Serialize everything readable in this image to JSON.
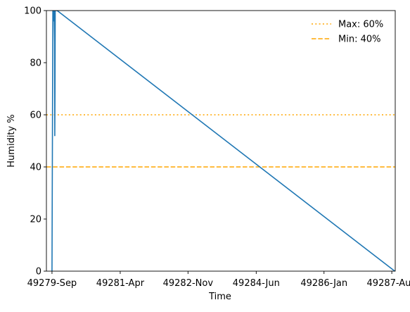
{
  "chart_data": {
    "type": "line",
    "title": "",
    "xlabel": "Time",
    "ylabel": "Humidity %",
    "ylim": [
      0,
      100
    ],
    "yticks": [
      0,
      20,
      40,
      60,
      80,
      100
    ],
    "xlim": [
      -0.13,
      8.0
    ],
    "xticks": [
      {
        "x": 0.0,
        "label": "49279-Sep"
      },
      {
        "x": 1.59,
        "label": "49281-Apr"
      },
      {
        "x": 3.17,
        "label": "49282-Nov"
      },
      {
        "x": 4.76,
        "label": "49284-Jun"
      },
      {
        "x": 6.34,
        "label": "49286-Jan"
      },
      {
        "x": 7.92,
        "label": "49287-Aug"
      }
    ],
    "grid": false,
    "legend_position": "top-right",
    "series": [
      {
        "color": "#1f77b4",
        "points": [
          [
            0.0,
            0.0
          ],
          [
            0.02,
            100.0
          ],
          [
            0.03,
            98.5
          ],
          [
            0.035,
            100.0
          ],
          [
            0.045,
            96.0
          ],
          [
            0.05,
            100.0
          ],
          [
            0.055,
            94.0
          ],
          [
            0.06,
            88.0
          ],
          [
            0.065,
            52.0
          ],
          [
            0.07,
            70.0
          ],
          [
            0.075,
            100.0
          ],
          [
            0.09,
            100.0
          ],
          [
            0.12,
            100.0
          ],
          [
            7.99,
            0.0
          ]
        ]
      }
    ],
    "reference_lines": [
      {
        "name": "Max: 60%",
        "y": 60,
        "color": "#ffa500",
        "style": "dotted"
      },
      {
        "name": "Min: 40%",
        "y": 40,
        "color": "#ffa500",
        "style": "dashed"
      }
    ]
  }
}
